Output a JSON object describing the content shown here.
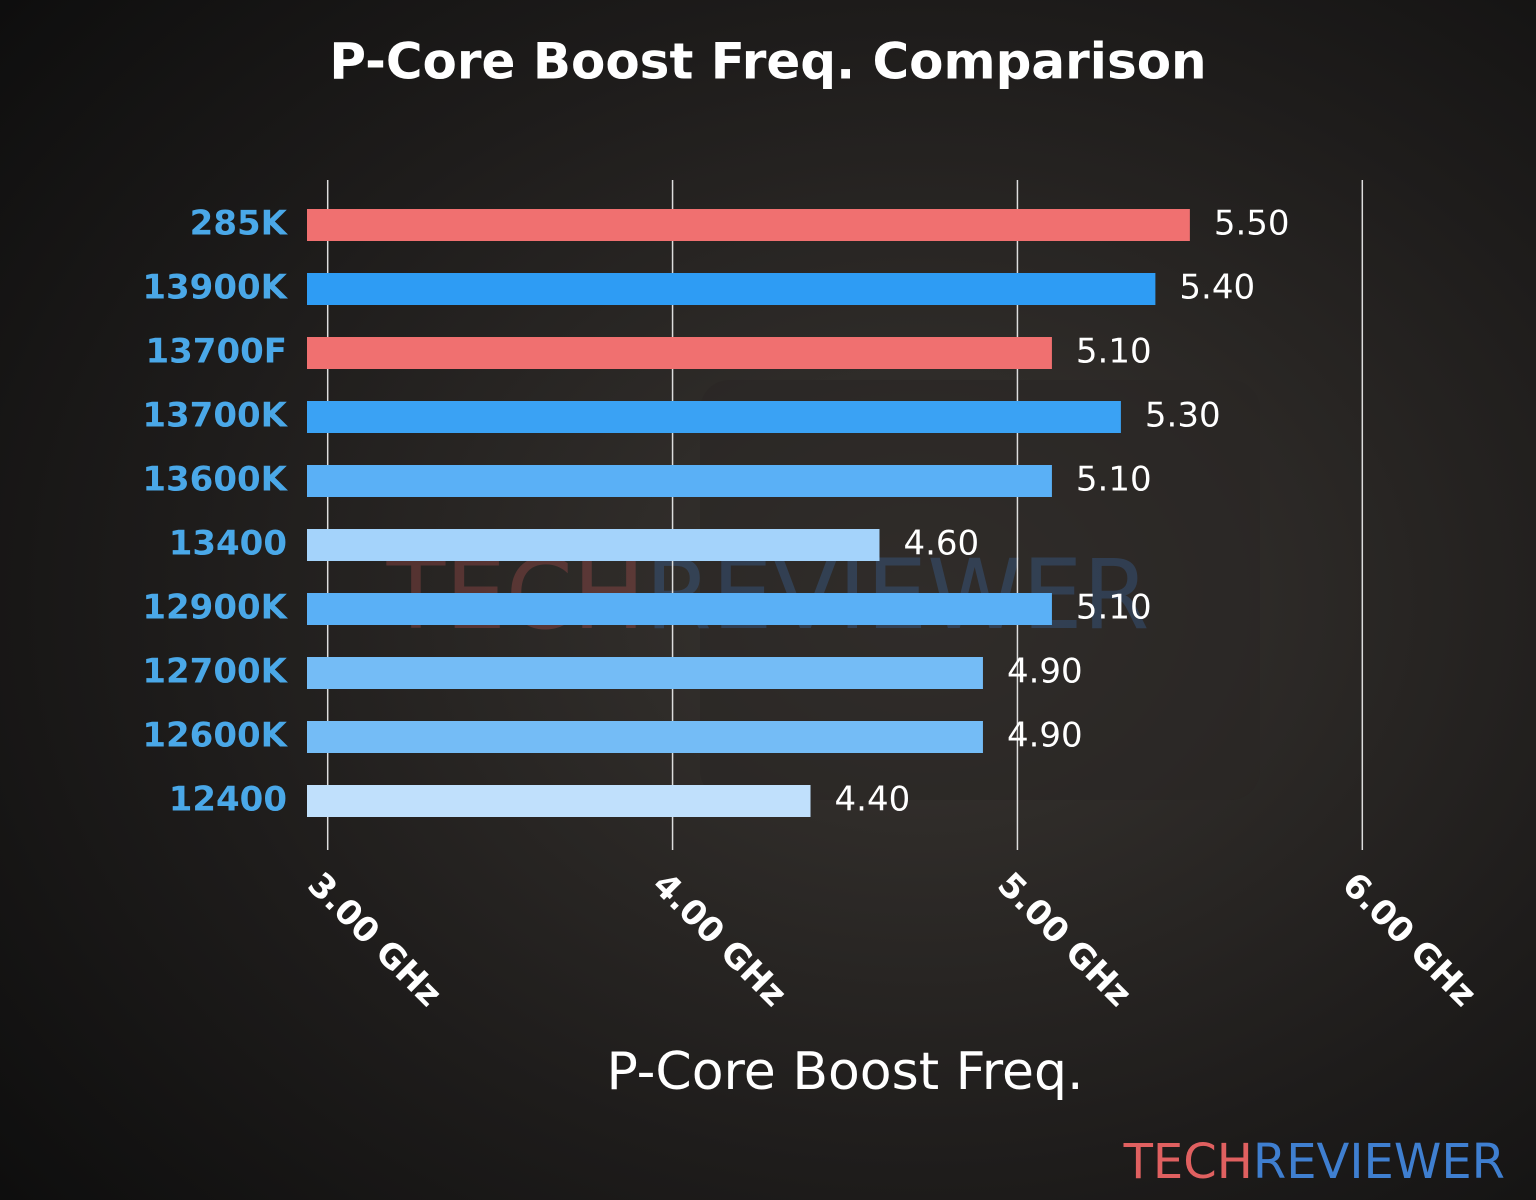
{
  "chart_data": {
    "type": "barh",
    "title": "P-Core Boost Freq. Comparison",
    "xlabel": "P-Core Boost Freq.",
    "categories": [
      "285K",
      "13900K",
      "13700F",
      "13700K",
      "13600K",
      "13400",
      "12900K",
      "12700K",
      "12600K",
      "12400"
    ],
    "values": [
      5.5,
      5.4,
      5.1,
      5.3,
      5.1,
      4.6,
      5.1,
      4.9,
      4.9,
      4.4
    ],
    "value_labels": [
      "5.50",
      "5.40",
      "5.10",
      "5.30",
      "5.10",
      "4.60",
      "5.10",
      "4.90",
      "4.90",
      "4.40"
    ],
    "colors": [
      "#f07070",
      "#2e9cf4",
      "#f07070",
      "#3aa2f4",
      "#5ab0f6",
      "#a4d3fb",
      "#5ab0f6",
      "#74bcf6",
      "#74bcf6",
      "#c0e0fc"
    ],
    "xlim": [
      2.94,
      6.06
    ],
    "xticks": [
      {
        "value": 3,
        "label": "3.00 GHz"
      },
      {
        "value": 4,
        "label": "4.00 GHz"
      },
      {
        "value": 5,
        "label": "5.00 GHz"
      },
      {
        "value": 6,
        "label": "6.00 GHz"
      }
    ],
    "grid": true,
    "watermark": [
      "TECH",
      "REVIEWER"
    ],
    "watermark_colors": [
      "#e06060",
      "#3f7fd0"
    ]
  }
}
